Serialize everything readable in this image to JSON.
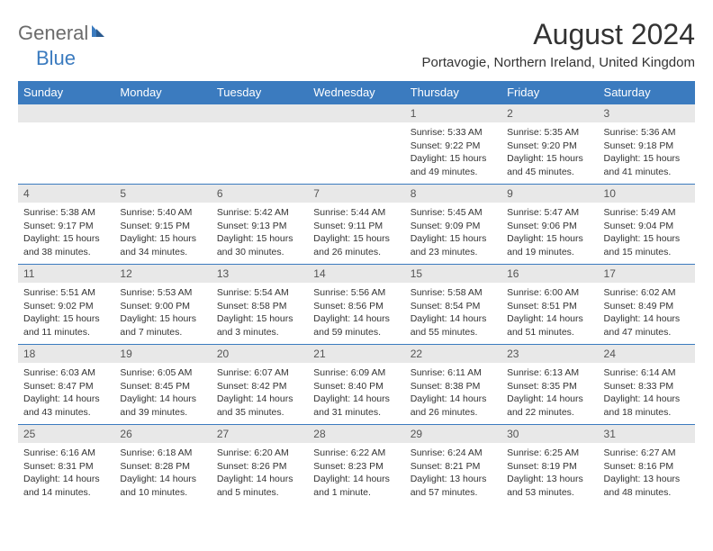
{
  "logo": {
    "text1": "General",
    "text2": "Blue"
  },
  "title": "August 2024",
  "location": "Portavogie, Northern Ireland, United Kingdom",
  "colors": {
    "header_bg": "#3b7bbf",
    "header_text": "#ffffff",
    "daynum_bg": "#e8e8e8",
    "border": "#3b7bbf",
    "logo_gray": "#6b6b6b",
    "logo_blue": "#3b7bbf"
  },
  "dayHeaders": [
    "Sunday",
    "Monday",
    "Tuesday",
    "Wednesday",
    "Thursday",
    "Friday",
    "Saturday"
  ],
  "weeks": [
    [
      {
        "n": "",
        "sr": "",
        "ss": "",
        "dl": ""
      },
      {
        "n": "",
        "sr": "",
        "ss": "",
        "dl": ""
      },
      {
        "n": "",
        "sr": "",
        "ss": "",
        "dl": ""
      },
      {
        "n": "",
        "sr": "",
        "ss": "",
        "dl": ""
      },
      {
        "n": "1",
        "sr": "Sunrise: 5:33 AM",
        "ss": "Sunset: 9:22 PM",
        "dl": "Daylight: 15 hours and 49 minutes."
      },
      {
        "n": "2",
        "sr": "Sunrise: 5:35 AM",
        "ss": "Sunset: 9:20 PM",
        "dl": "Daylight: 15 hours and 45 minutes."
      },
      {
        "n": "3",
        "sr": "Sunrise: 5:36 AM",
        "ss": "Sunset: 9:18 PM",
        "dl": "Daylight: 15 hours and 41 minutes."
      }
    ],
    [
      {
        "n": "4",
        "sr": "Sunrise: 5:38 AM",
        "ss": "Sunset: 9:17 PM",
        "dl": "Daylight: 15 hours and 38 minutes."
      },
      {
        "n": "5",
        "sr": "Sunrise: 5:40 AM",
        "ss": "Sunset: 9:15 PM",
        "dl": "Daylight: 15 hours and 34 minutes."
      },
      {
        "n": "6",
        "sr": "Sunrise: 5:42 AM",
        "ss": "Sunset: 9:13 PM",
        "dl": "Daylight: 15 hours and 30 minutes."
      },
      {
        "n": "7",
        "sr": "Sunrise: 5:44 AM",
        "ss": "Sunset: 9:11 PM",
        "dl": "Daylight: 15 hours and 26 minutes."
      },
      {
        "n": "8",
        "sr": "Sunrise: 5:45 AM",
        "ss": "Sunset: 9:09 PM",
        "dl": "Daylight: 15 hours and 23 minutes."
      },
      {
        "n": "9",
        "sr": "Sunrise: 5:47 AM",
        "ss": "Sunset: 9:06 PM",
        "dl": "Daylight: 15 hours and 19 minutes."
      },
      {
        "n": "10",
        "sr": "Sunrise: 5:49 AM",
        "ss": "Sunset: 9:04 PM",
        "dl": "Daylight: 15 hours and 15 minutes."
      }
    ],
    [
      {
        "n": "11",
        "sr": "Sunrise: 5:51 AM",
        "ss": "Sunset: 9:02 PM",
        "dl": "Daylight: 15 hours and 11 minutes."
      },
      {
        "n": "12",
        "sr": "Sunrise: 5:53 AM",
        "ss": "Sunset: 9:00 PM",
        "dl": "Daylight: 15 hours and 7 minutes."
      },
      {
        "n": "13",
        "sr": "Sunrise: 5:54 AM",
        "ss": "Sunset: 8:58 PM",
        "dl": "Daylight: 15 hours and 3 minutes."
      },
      {
        "n": "14",
        "sr": "Sunrise: 5:56 AM",
        "ss": "Sunset: 8:56 PM",
        "dl": "Daylight: 14 hours and 59 minutes."
      },
      {
        "n": "15",
        "sr": "Sunrise: 5:58 AM",
        "ss": "Sunset: 8:54 PM",
        "dl": "Daylight: 14 hours and 55 minutes."
      },
      {
        "n": "16",
        "sr": "Sunrise: 6:00 AM",
        "ss": "Sunset: 8:51 PM",
        "dl": "Daylight: 14 hours and 51 minutes."
      },
      {
        "n": "17",
        "sr": "Sunrise: 6:02 AM",
        "ss": "Sunset: 8:49 PM",
        "dl": "Daylight: 14 hours and 47 minutes."
      }
    ],
    [
      {
        "n": "18",
        "sr": "Sunrise: 6:03 AM",
        "ss": "Sunset: 8:47 PM",
        "dl": "Daylight: 14 hours and 43 minutes."
      },
      {
        "n": "19",
        "sr": "Sunrise: 6:05 AM",
        "ss": "Sunset: 8:45 PM",
        "dl": "Daylight: 14 hours and 39 minutes."
      },
      {
        "n": "20",
        "sr": "Sunrise: 6:07 AM",
        "ss": "Sunset: 8:42 PM",
        "dl": "Daylight: 14 hours and 35 minutes."
      },
      {
        "n": "21",
        "sr": "Sunrise: 6:09 AM",
        "ss": "Sunset: 8:40 PM",
        "dl": "Daylight: 14 hours and 31 minutes."
      },
      {
        "n": "22",
        "sr": "Sunrise: 6:11 AM",
        "ss": "Sunset: 8:38 PM",
        "dl": "Daylight: 14 hours and 26 minutes."
      },
      {
        "n": "23",
        "sr": "Sunrise: 6:13 AM",
        "ss": "Sunset: 8:35 PM",
        "dl": "Daylight: 14 hours and 22 minutes."
      },
      {
        "n": "24",
        "sr": "Sunrise: 6:14 AM",
        "ss": "Sunset: 8:33 PM",
        "dl": "Daylight: 14 hours and 18 minutes."
      }
    ],
    [
      {
        "n": "25",
        "sr": "Sunrise: 6:16 AM",
        "ss": "Sunset: 8:31 PM",
        "dl": "Daylight: 14 hours and 14 minutes."
      },
      {
        "n": "26",
        "sr": "Sunrise: 6:18 AM",
        "ss": "Sunset: 8:28 PM",
        "dl": "Daylight: 14 hours and 10 minutes."
      },
      {
        "n": "27",
        "sr": "Sunrise: 6:20 AM",
        "ss": "Sunset: 8:26 PM",
        "dl": "Daylight: 14 hours and 5 minutes."
      },
      {
        "n": "28",
        "sr": "Sunrise: 6:22 AM",
        "ss": "Sunset: 8:23 PM",
        "dl": "Daylight: 14 hours and 1 minute."
      },
      {
        "n": "29",
        "sr": "Sunrise: 6:24 AM",
        "ss": "Sunset: 8:21 PM",
        "dl": "Daylight: 13 hours and 57 minutes."
      },
      {
        "n": "30",
        "sr": "Sunrise: 6:25 AM",
        "ss": "Sunset: 8:19 PM",
        "dl": "Daylight: 13 hours and 53 minutes."
      },
      {
        "n": "31",
        "sr": "Sunrise: 6:27 AM",
        "ss": "Sunset: 8:16 PM",
        "dl": "Daylight: 13 hours and 48 minutes."
      }
    ]
  ]
}
